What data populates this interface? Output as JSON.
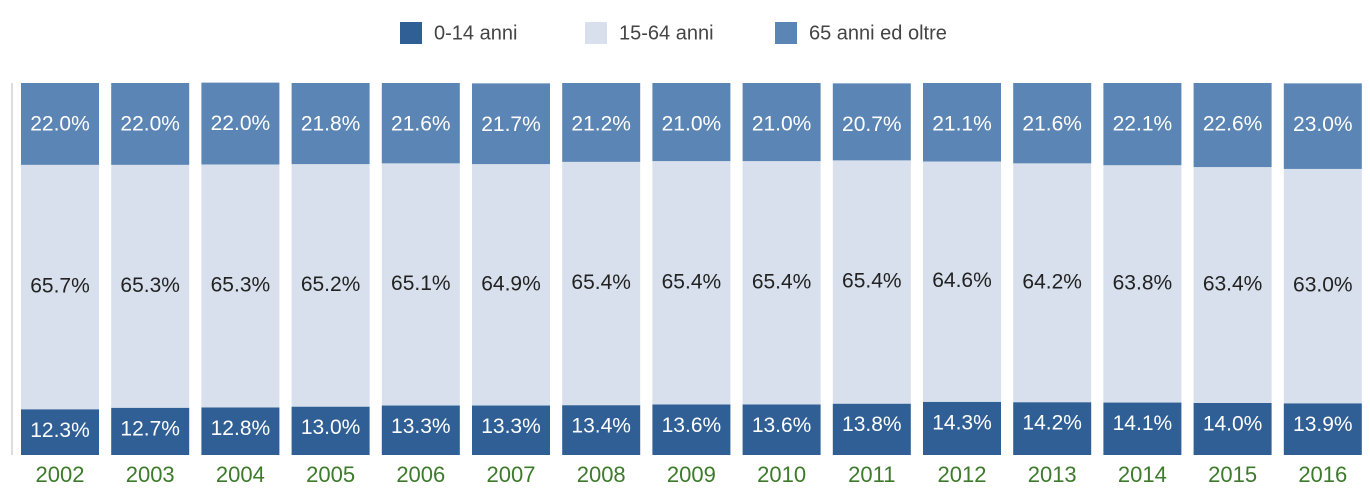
{
  "chart_data": {
    "type": "stacked_bar",
    "categories": [
      "2002",
      "2003",
      "2004",
      "2005",
      "2006",
      "2007",
      "2008",
      "2009",
      "2010",
      "2011",
      "2012",
      "2013",
      "2014",
      "2015",
      "2016"
    ],
    "ylim": [
      0,
      100
    ],
    "series": [
      {
        "name": "0-14 anni",
        "color": "#2f5f95",
        "values": [
          12.3,
          12.7,
          12.8,
          13.0,
          13.3,
          13.3,
          13.4,
          13.6,
          13.6,
          13.8,
          14.3,
          14.2,
          14.1,
          14.0,
          13.9
        ],
        "value_labels": [
          "12.3%",
          "12.7%",
          "12.8%",
          "13.0%",
          "13.3%",
          "13.3%",
          "13.4%",
          "13.6%",
          "13.6%",
          "13.8%",
          "14.3%",
          "14.2%",
          "14.1%",
          "14.0%",
          "13.9%"
        ]
      },
      {
        "name": "15-64 anni",
        "color": "#d7e0ec",
        "values": [
          65.7,
          65.3,
          65.3,
          65.2,
          65.1,
          64.9,
          65.4,
          65.4,
          65.4,
          65.4,
          64.6,
          64.2,
          63.8,
          63.4,
          63.0
        ],
        "value_labels": [
          "65.7%",
          "65.3%",
          "65.3%",
          "65.2%",
          "65.1%",
          "64.9%",
          "65.4%",
          "65.4%",
          "65.4%",
          "65.4%",
          "64.6%",
          "64.2%",
          "63.8%",
          "63.4%",
          "63.0%"
        ]
      },
      {
        "name": "65 anni ed oltre",
        "color": "#5b85b4",
        "values": [
          22.0,
          22.0,
          22.0,
          21.8,
          21.6,
          21.7,
          21.2,
          21.0,
          21.0,
          20.7,
          21.1,
          21.6,
          22.1,
          22.6,
          23.0
        ],
        "value_labels": [
          "22.0%",
          "22.0%",
          "22.0%",
          "21.8%",
          "21.6%",
          "21.7%",
          "21.2%",
          "21.0%",
          "21.0%",
          "20.7%",
          "21.1%",
          "21.6%",
          "22.1%",
          "22.6%",
          "23.0%"
        ]
      }
    ]
  }
}
